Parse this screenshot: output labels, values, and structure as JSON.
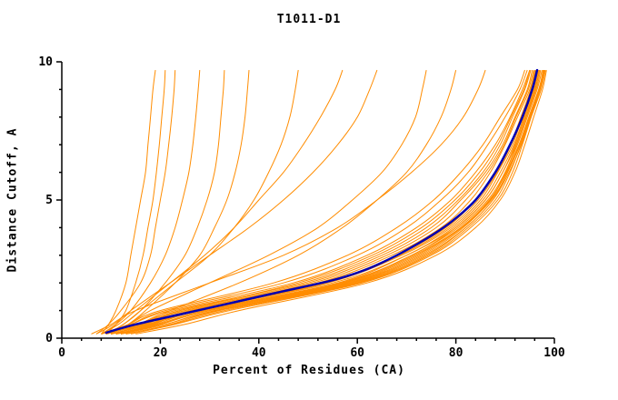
{
  "chart_data": {
    "type": "line",
    "title": "T1011-D1",
    "xlabel": "Percent of Residues (CA)",
    "ylabel": "Distance Cutoff, A",
    "xlim": [
      0,
      100
    ],
    "ylim": [
      0,
      10
    ],
    "x_axis": {
      "ticks": [
        0,
        20,
        40,
        60,
        80,
        100
      ],
      "minor_step": 4
    },
    "y_axis": {
      "ticks": [
        0,
        5,
        10
      ],
      "minor_step": 1
    },
    "grid": false,
    "legend": "none",
    "colors": {
      "background": "#ffffff",
      "axis": "#000000",
      "text": "#000000",
      "models": "#ff8c00",
      "highlight": "#0000b3"
    },
    "highlight_series": {
      "color_key": "highlight",
      "line_width": 2.5,
      "points": [
        [
          9,
          0.2
        ],
        [
          15,
          0.5
        ],
        [
          25,
          0.9
        ],
        [
          35,
          1.3
        ],
        [
          45,
          1.7
        ],
        [
          55,
          2.1
        ],
        [
          62,
          2.5
        ],
        [
          68,
          3.0
        ],
        [
          74,
          3.6
        ],
        [
          79,
          4.2
        ],
        [
          84,
          5.0
        ],
        [
          88,
          6.0
        ],
        [
          91,
          7.0
        ],
        [
          93.5,
          8.0
        ],
        [
          95.5,
          9.0
        ],
        [
          96.5,
          9.7
        ]
      ]
    },
    "model_series": {
      "color_key": "models",
      "line_width": 1,
      "y_levels": [
        0.15,
        0.5,
        1,
        2,
        3,
        4,
        5,
        6,
        7,
        8,
        9,
        9.7
      ],
      "curves_x_at_levels": [
        [
          8,
          9.5,
          11,
          13,
          14,
          15,
          16,
          17,
          17.5,
          18,
          18.5,
          19
        ],
        [
          9,
          11,
          13,
          15,
          16.5,
          17.5,
          18.5,
          19.2,
          19.8,
          20.3,
          20.8,
          21
        ],
        [
          7,
          9.5,
          12,
          16,
          18,
          19,
          20,
          21,
          21.7,
          22.3,
          22.8,
          23
        ],
        [
          8,
          11,
          14,
          18,
          21,
          23,
          24.5,
          25.8,
          26.6,
          27.2,
          27.7,
          28
        ],
        [
          9,
          12.5,
          16,
          21,
          25,
          27.5,
          29.5,
          31,
          31.8,
          32.3,
          32.8,
          33
        ],
        [
          10,
          13.5,
          17,
          23,
          28,
          31,
          33.5,
          35.2,
          36.4,
          37.2,
          37.7,
          38
        ],
        [
          8,
          11.5,
          15,
          22,
          29,
          35,
          40,
          45,
          49,
          52.5,
          55.5,
          57
        ],
        [
          9,
          12.5,
          16,
          23,
          30,
          35,
          39,
          42,
          44.5,
          46.3,
          47.4,
          48
        ],
        [
          7,
          10.5,
          14,
          22,
          30,
          38,
          45,
          51,
          56,
          60,
          62.5,
          64
        ],
        [
          9,
          13.5,
          18,
          30,
          42,
          52,
          59,
          65,
          69,
          71.8,
          73.2,
          74
        ],
        [
          11,
          16,
          22,
          36,
          48,
          57,
          64,
          70,
          74,
          77,
          79,
          80
        ],
        [
          6,
          10,
          15,
          30,
          45,
          56,
          64,
          71,
          77,
          81.5,
          84.5,
          86
        ],
        [
          9,
          16,
          24,
          50,
          65,
          75,
          81,
          86,
          89.5,
          92,
          94.5,
          95.5
        ],
        [
          11,
          19,
          28,
          56,
          70,
          80,
          86,
          89.5,
          92,
          94,
          96,
          97
        ],
        [
          10,
          17,
          25,
          52,
          67,
          77,
          83,
          87,
          90,
          92.5,
          95,
          96
        ],
        [
          12,
          20,
          30,
          58,
          72,
          81,
          87,
          90,
          92.5,
          94.5,
          96.5,
          97.5
        ],
        [
          8,
          14,
          22,
          47,
          62,
          72,
          79,
          84,
          88,
          91,
          93.5,
          95
        ],
        [
          13,
          22,
          32,
          60,
          74,
          82,
          87.5,
          90.5,
          93,
          95,
          97,
          98
        ],
        [
          10,
          18,
          27,
          54,
          69,
          79,
          85,
          88.5,
          91.5,
          93.5,
          95.5,
          96.5
        ],
        [
          11,
          19.5,
          29,
          57,
          71,
          80.5,
          86.5,
          90,
          92.3,
          94.3,
          96.3,
          97.2
        ],
        [
          9,
          15.5,
          23,
          49,
          64,
          74,
          80.5,
          85.5,
          89,
          91.5,
          94,
          95.2
        ],
        [
          12,
          21,
          31,
          59,
          73,
          81.5,
          87,
          90.2,
          92.8,
          94.8,
          96.8,
          97.8
        ],
        [
          10,
          17.5,
          26,
          53,
          68,
          78,
          84,
          88,
          91,
          93.2,
          95.2,
          96.2
        ],
        [
          14,
          23,
          34,
          61,
          75,
          83,
          88.5,
          91.5,
          93.5,
          95.3,
          97.3,
          98.2
        ],
        [
          8,
          14,
          21,
          45,
          60,
          70,
          77,
          82.5,
          86.5,
          90,
          93,
          94.5
        ],
        [
          11,
          18.5,
          27,
          55,
          70,
          79.5,
          85.5,
          89,
          91.8,
          93.8,
          95.8,
          96.8
        ],
        [
          9,
          16.5,
          25,
          51,
          66,
          76,
          82,
          86.5,
          89.8,
          92.2,
          94.7,
          95.8
        ],
        [
          13,
          22.5,
          33,
          60.5,
          74.5,
          82.5,
          88,
          91,
          93.2,
          95.1,
          97,
          98
        ],
        [
          10,
          18,
          28,
          56.5,
          71,
          80,
          86,
          89.5,
          92.2,
          94.2,
          96.1,
          97
        ],
        [
          12,
          20,
          29,
          57.5,
          71.5,
          81,
          86.8,
          90.3,
          92.9,
          94.9,
          96.9,
          97.7
        ],
        [
          9,
          16,
          24,
          48,
          63,
          73,
          79.8,
          84.8,
          88.5,
          91.2,
          93.8,
          95
        ],
        [
          11,
          20,
          30,
          58.5,
          72.5,
          81.2,
          87.2,
          90.5,
          93,
          95,
          96.9,
          97.9
        ],
        [
          15,
          25,
          36,
          62,
          76,
          84,
          89,
          92,
          94,
          95.8,
          97.6,
          98.4
        ],
        [
          10,
          17.5,
          26.5,
          53.5,
          68.5,
          78.5,
          84.5,
          88.3,
          91.2,
          93.4,
          95.4,
          96.4
        ],
        [
          8,
          13.5,
          20,
          43,
          58,
          68,
          75.5,
          81,
          85.5,
          89,
          92.5,
          94
        ],
        [
          12,
          21,
          31.5,
          59.5,
          73.5,
          82,
          87.5,
          90.8,
          93.3,
          95.2,
          97.1,
          98
        ]
      ]
    }
  }
}
